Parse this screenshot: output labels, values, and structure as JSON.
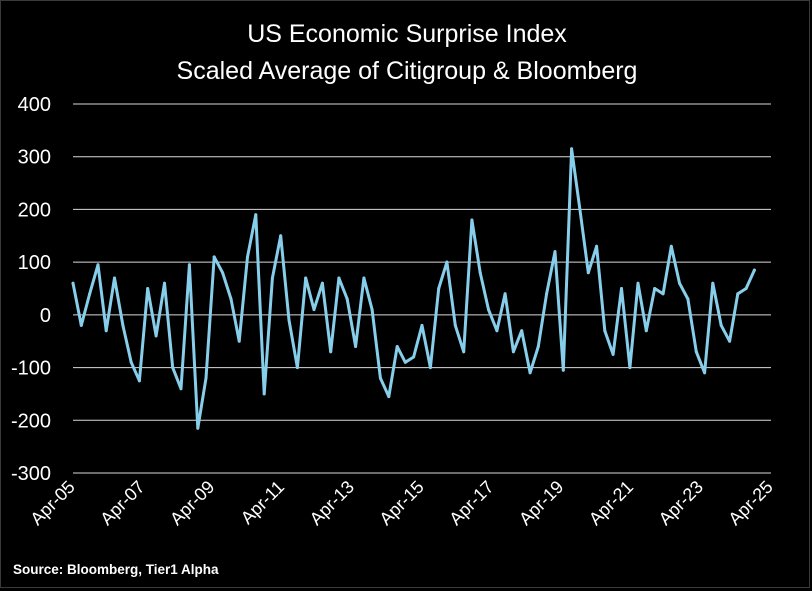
{
  "chart_data": {
    "type": "line",
    "title": "US Economic Surprise Index",
    "subtitle": "Scaled Average of Citigroup & Bloomberg",
    "xlabel": "",
    "ylabel": "",
    "ylim": [
      -300,
      400
    ],
    "yticks": [
      400,
      300,
      200,
      100,
      0,
      -100,
      -200,
      -300
    ],
    "ytick_labels": [
      "400",
      "300",
      "200",
      "100",
      "0",
      "-100",
      "-200",
      "-300"
    ],
    "xtick_labels": [
      "Apr-05",
      "Apr-07",
      "Apr-09",
      "Apr-11",
      "Apr-13",
      "Apr-15",
      "Apr-17",
      "Apr-19",
      "Apr-21",
      "Apr-23",
      "Apr-25"
    ],
    "grid": "horizontal",
    "line_color": "#87ceeb",
    "series": [
      {
        "x": [
          "2005-04",
          "2005-07",
          "2005-10",
          "2006-01",
          "2006-04",
          "2006-07",
          "2006-10",
          "2007-01",
          "2007-04",
          "2007-07",
          "2007-10",
          "2008-01",
          "2008-04",
          "2008-07",
          "2008-10",
          "2009-01",
          "2009-04",
          "2009-07",
          "2009-10",
          "2010-01",
          "2010-04",
          "2010-07",
          "2010-10",
          "2011-01",
          "2011-04",
          "2011-07",
          "2011-10",
          "2012-01",
          "2012-04",
          "2012-07",
          "2012-10",
          "2013-01",
          "2013-04",
          "2013-07",
          "2013-10",
          "2014-01",
          "2014-04",
          "2014-07",
          "2014-10",
          "2015-01",
          "2015-04",
          "2015-07",
          "2015-10",
          "2016-01",
          "2016-04",
          "2016-07",
          "2016-10",
          "2017-01",
          "2017-04",
          "2017-07",
          "2017-10",
          "2018-01",
          "2018-04",
          "2018-07",
          "2018-10",
          "2019-01",
          "2019-04",
          "2019-07",
          "2019-10",
          "2020-01",
          "2020-04",
          "2020-07",
          "2020-10",
          "2021-01",
          "2021-04",
          "2021-07",
          "2021-10",
          "2022-01",
          "2022-04",
          "2022-07",
          "2022-10",
          "2023-01",
          "2023-04",
          "2023-07",
          "2023-10",
          "2024-01",
          "2024-04",
          "2024-07",
          "2024-10",
          "2025-01",
          "2025-04",
          "2025-07",
          "2025-10"
        ],
        "values": [
          60,
          -20,
          40,
          95,
          -30,
          70,
          -20,
          -90,
          -125,
          50,
          -40,
          60,
          -100,
          -140,
          95,
          -215,
          -120,
          110,
          80,
          30,
          -50,
          110,
          190,
          -150,
          70,
          150,
          -10,
          -100,
          70,
          10,
          60,
          -70,
          70,
          30,
          -60,
          70,
          10,
          -120,
          -155,
          -60,
          -90,
          -80,
          -20,
          -100,
          50,
          100,
          -20,
          -70,
          180,
          80,
          10,
          -30,
          40,
          -70,
          -30,
          -110,
          -60,
          40,
          120,
          -105,
          315,
          200,
          80,
          130,
          -30,
          -75,
          50,
          -100,
          60,
          -30,
          50,
          40,
          130,
          60,
          30,
          -70,
          -110,
          60,
          -20,
          -50,
          40,
          50,
          85
        ]
      }
    ],
    "source": "Source: Bloomberg, Tier1 Alpha"
  }
}
